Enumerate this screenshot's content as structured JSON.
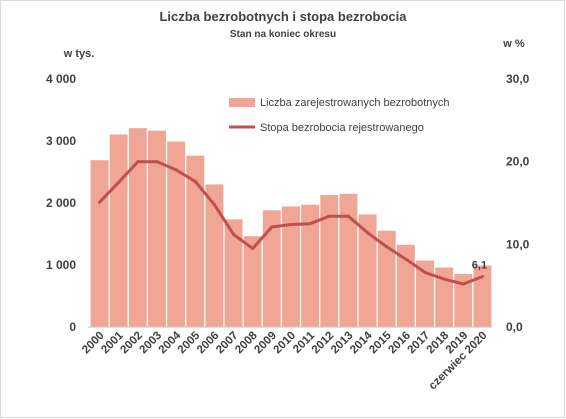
{
  "chart_data": {
    "type": "bar",
    "title": "Liczba bezrobotnych i stopa bezrobocia",
    "subtitle": "Stan na koniec okresu",
    "y_left_unit": "w tys.",
    "y_right_unit": "w %",
    "y_left_ticks": [
      "4 000",
      "3 000",
      "2 000",
      "1 000",
      "0"
    ],
    "y_right_ticks": [
      "30,0",
      "20,0",
      "10,0",
      "0,0"
    ],
    "ylim_left": [
      0,
      4000
    ],
    "ylim_right": [
      0,
      30
    ],
    "categories": [
      "2000",
      "2001",
      "2002",
      "2003",
      "2004",
      "2005",
      "2006",
      "2007",
      "2008",
      "2009",
      "2010",
      "2011",
      "2012",
      "2013",
      "2014",
      "2015",
      "2016",
      "2017",
      "2018",
      "2019",
      "czerwiec 2020"
    ],
    "series": [
      {
        "name": "Liczba zarejestrowanych bezrobotnych",
        "type": "bar",
        "axis": "left",
        "color": "#f0a595",
        "values": [
          2700,
          3115,
          3217,
          3176,
          3000,
          2773,
          2309,
          1746,
          1474,
          1892,
          1954,
          1982,
          2137,
          2158,
          1825,
          1563,
          1335,
          1082,
          969,
          866,
          1002
        ]
      },
      {
        "name": "Stopa bezrobocia rejestrowanego",
        "type": "line",
        "axis": "right",
        "color": "#c0504d",
        "values": [
          15.1,
          17.5,
          20.0,
          20.0,
          19.0,
          17.6,
          14.8,
          11.2,
          9.5,
          12.1,
          12.4,
          12.5,
          13.4,
          13.4,
          11.4,
          9.7,
          8.2,
          6.6,
          5.8,
          5.2,
          6.1
        ]
      }
    ],
    "annotations": [
      {
        "category": "czerwiec 2020",
        "series": "Stopa bezrobocia rejestrowanego",
        "text": "6,1"
      }
    ],
    "legend_position": "top-right",
    "grid": false
  }
}
